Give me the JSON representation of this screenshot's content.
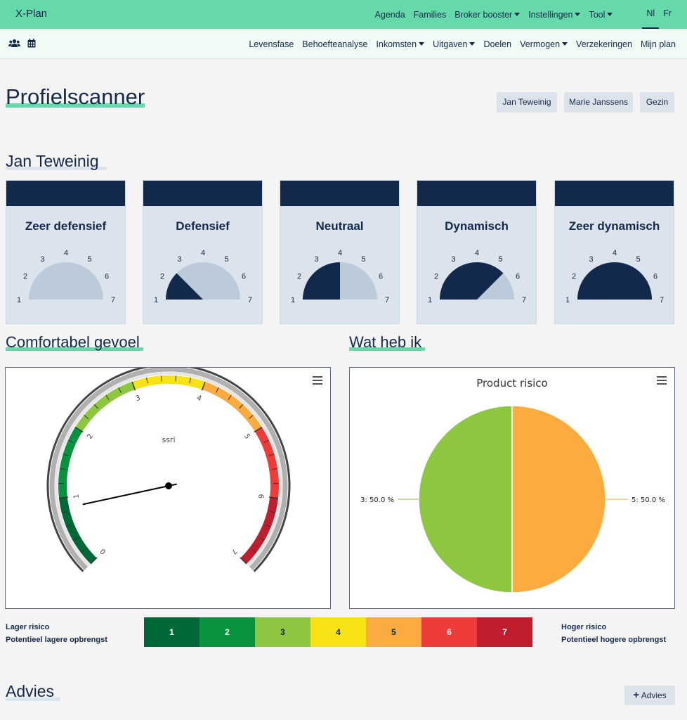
{
  "app": {
    "title": "X-Plan"
  },
  "topnav": {
    "items": [
      "Agenda",
      "Families",
      "Broker booster",
      "Instellingen",
      "Tool"
    ],
    "languages": [
      "Nl",
      "Fr"
    ]
  },
  "subnav": {
    "icons": [
      "users-icon",
      "calendar-icon"
    ],
    "items": [
      "Levensfase",
      "Behoefteanalyse",
      "Inkomsten",
      "Uitgaven",
      "Doelen",
      "Vermogen",
      "Verzekeringen",
      "Mijn plan"
    ]
  },
  "page": {
    "title": "Profielscanner",
    "person_buttons": [
      "Jan Teweinig",
      "Marie Janssens",
      "Gezin"
    ]
  },
  "profile": {
    "name": "Jan Teweinig",
    "cards": [
      {
        "label": "Zeer defensief",
        "level": 0
      },
      {
        "label": "Defensief",
        "level": 1.5
      },
      {
        "label": "Neutraal",
        "level": 3
      },
      {
        "label": "Dynamisch",
        "level": 4.5
      },
      {
        "label": "Zeer dynamisch",
        "level": 6
      }
    ],
    "dial_ticks": [
      "1",
      "2",
      "3",
      "4",
      "5",
      "6",
      "7"
    ]
  },
  "comfort": {
    "heading": "Comfortabel gevoel",
    "gauge_label": "ssri",
    "gauge_ticks": [
      "0",
      "1",
      "2",
      "3",
      "4",
      "5",
      "6",
      "7"
    ],
    "needle_value": 0.85
  },
  "holdings": {
    "heading": "Wat heb ik",
    "chart_data": {
      "type": "pie",
      "title": "Product risico",
      "categories": [
        "3",
        "5"
      ],
      "values": [
        50.0,
        50.0
      ],
      "labels": [
        "3: 50.0 %",
        "5: 50.0 %"
      ],
      "colors": [
        "#8dc63f",
        "#fbab3f"
      ]
    }
  },
  "risk_scale": {
    "left_title": "Lager risico",
    "left_sub": "Potentieel lagere opbrengst",
    "right_title": "Hoger risico",
    "right_sub": "Potentieel hogere opbrengst",
    "levels": [
      {
        "label": "1",
        "color": "#006837",
        "text": "#ffffff"
      },
      {
        "label": "2",
        "color": "#0a933f",
        "text": "#ffffff"
      },
      {
        "label": "3",
        "color": "#8dc63f",
        "text": "#13294b"
      },
      {
        "label": "4",
        "color": "#f7e214",
        "text": "#13294b"
      },
      {
        "label": "5",
        "color": "#fbab3f",
        "text": "#13294b"
      },
      {
        "label": "6",
        "color": "#ed3c3a",
        "text": "#ffffff"
      },
      {
        "label": "7",
        "color": "#be1e2d",
        "text": "#ffffff"
      }
    ]
  },
  "advice": {
    "heading": "Advies",
    "button": "Advies"
  }
}
